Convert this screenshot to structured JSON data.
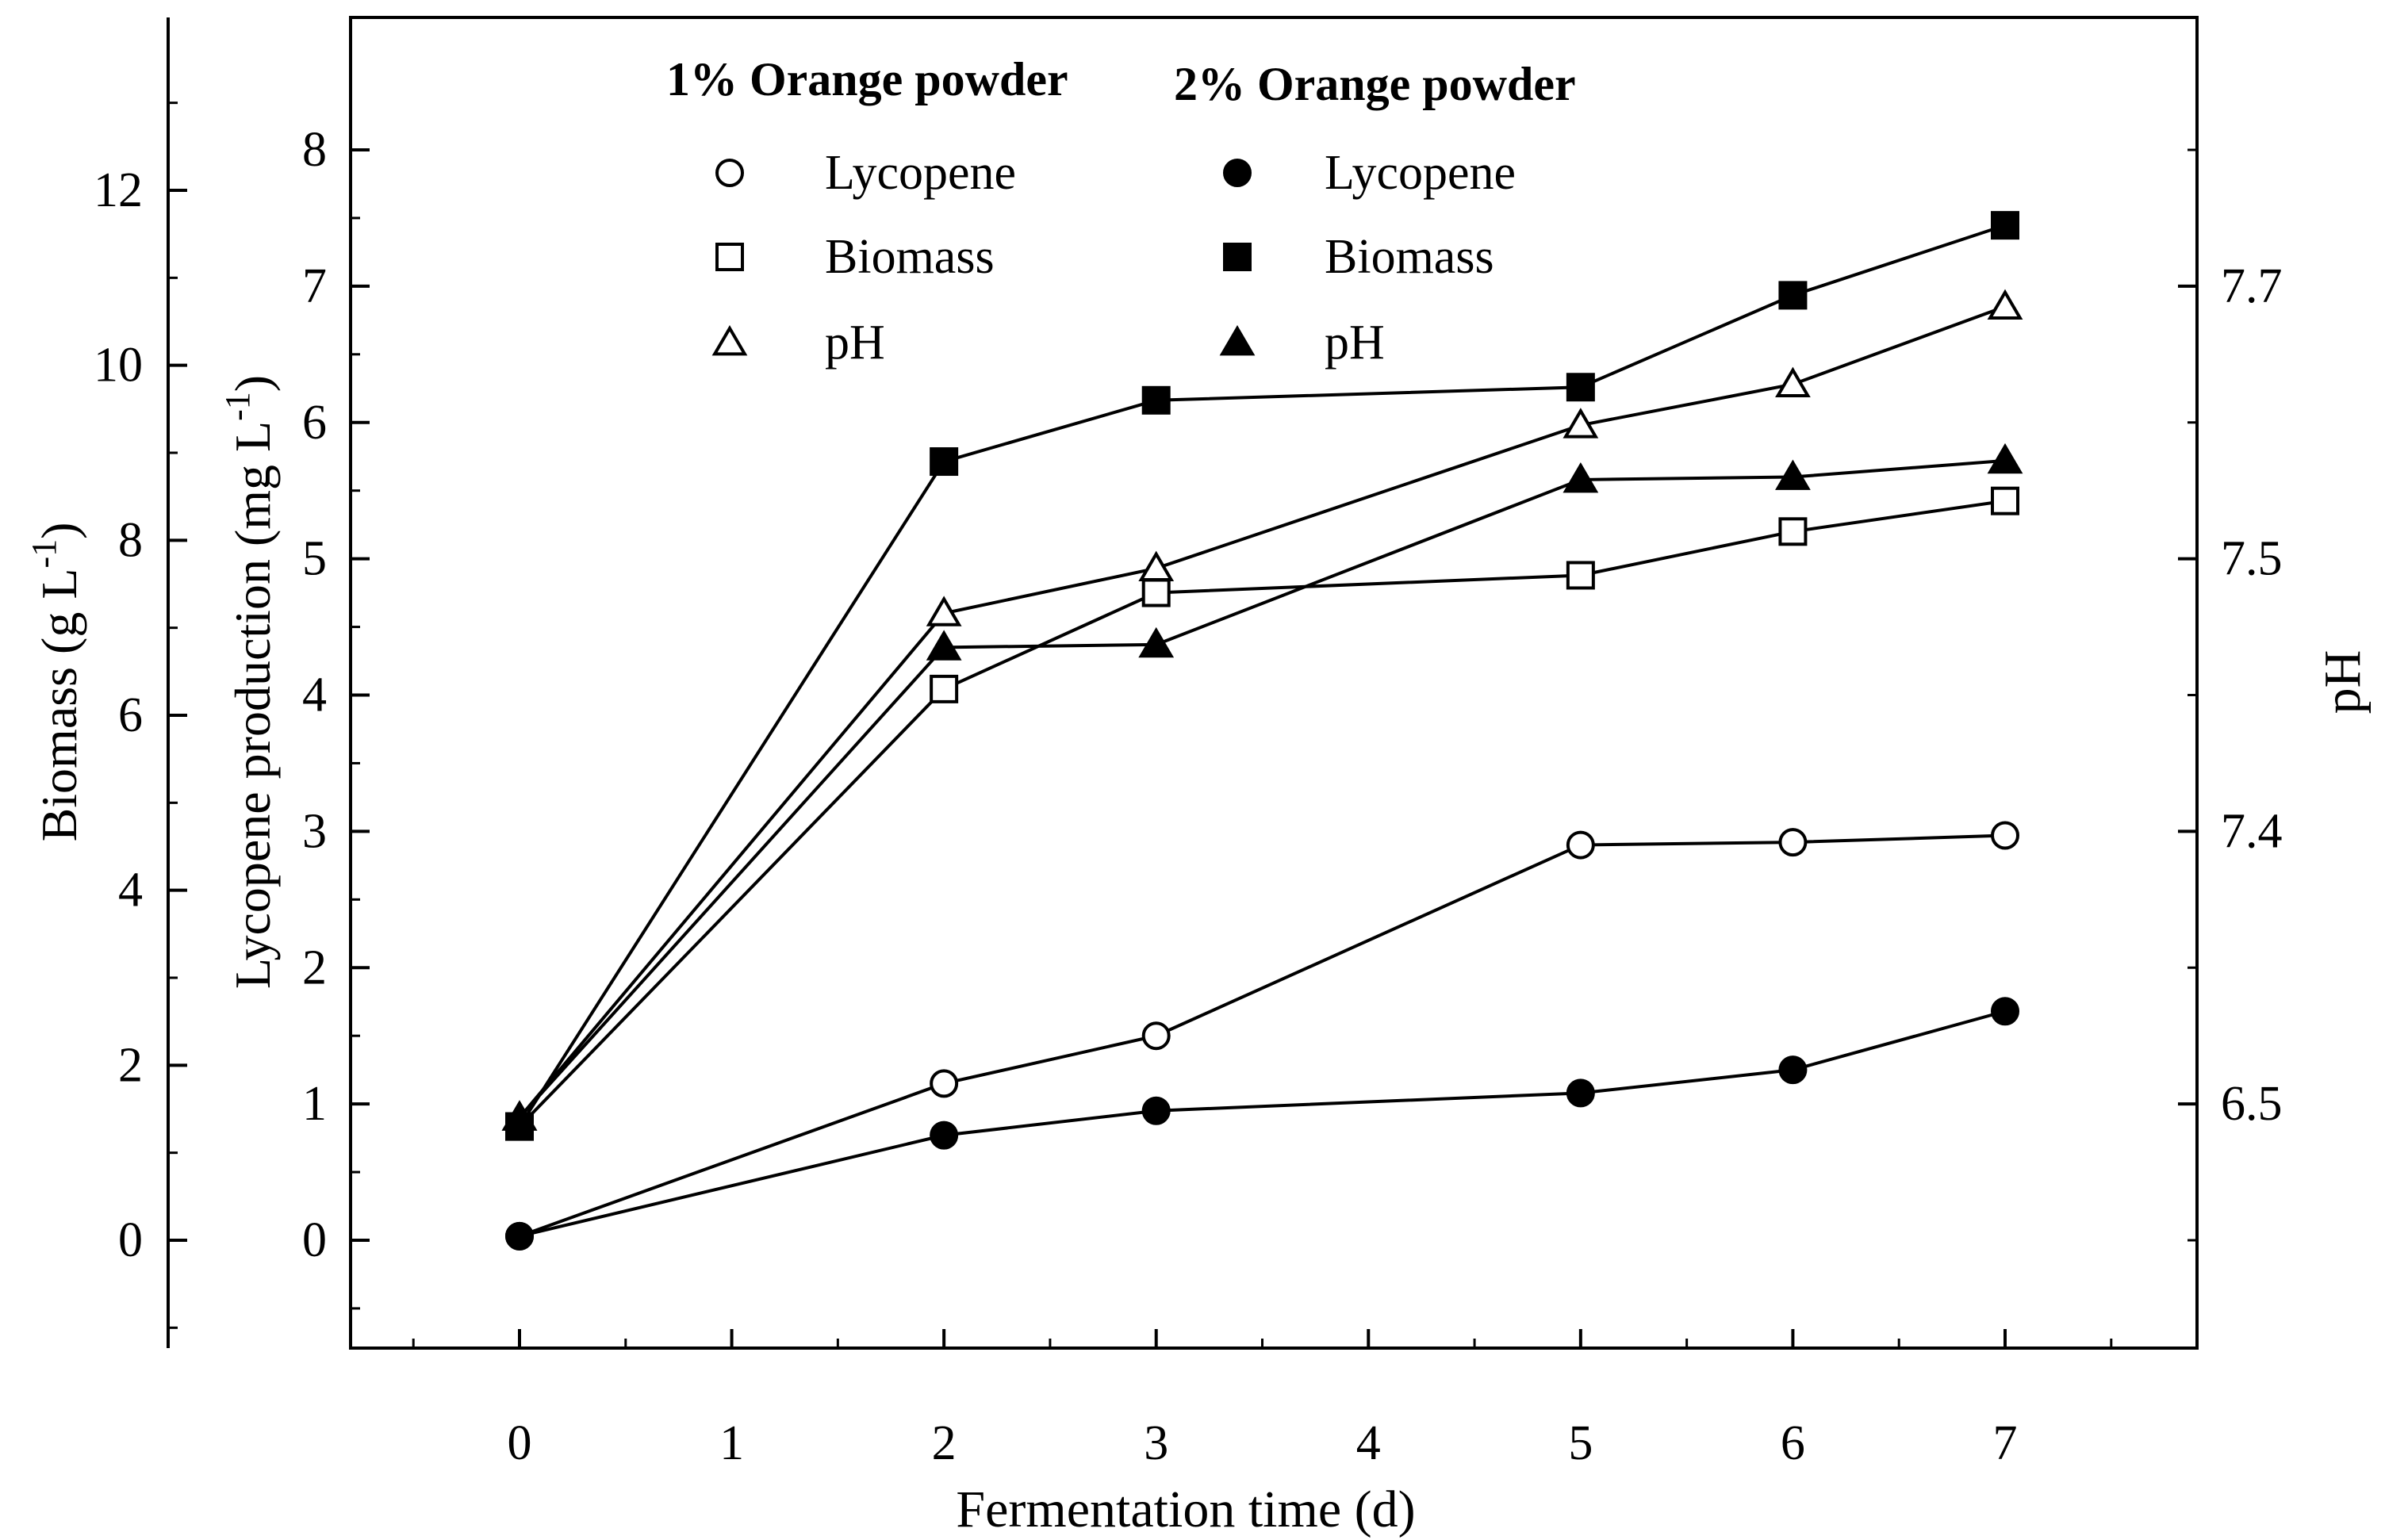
{
  "chart_data": {
    "type": "line",
    "xlabel": "Fermentation time (d)",
    "x_ticks": [
      0,
      1,
      2,
      3,
      4,
      5,
      6,
      7
    ],
    "xlim": [
      -0.8,
      7.9
    ],
    "y_axes": {
      "lycopene": {
        "label_main": "Lycopene production (mg L",
        "label_sup": "-1",
        "label_close": ")",
        "ticks": [
          0,
          1,
          2,
          3,
          4,
          5,
          6,
          7,
          8
        ],
        "range": [
          -0.77,
          8.0
        ]
      },
      "biomass": {
        "label_main": "Biomass (g L",
        "label_sup": "-1",
        "label_close": ")",
        "ticks": [
          0,
          2,
          4,
          6,
          8,
          10,
          12
        ],
        "range": [
          -2.2,
          14.0
        ]
      },
      "ph": {
        "label": "pH",
        "tick_labels": [
          "6.5",
          "7.4",
          "7.5",
          "7.7"
        ],
        "tick_positions_lycopene_units": [
          1.0,
          3.0,
          5.0,
          7.0
        ],
        "minor_tick_positions_lycopene_units": [
          0.0,
          2.0,
          4.0,
          6.0,
          8.0
        ]
      }
    },
    "x": [
      0,
      2,
      3,
      5,
      6,
      7
    ],
    "series": [
      {
        "group": "1% Orange powder",
        "name": "Lycopene",
        "axis": "lycopene",
        "marker": "circle",
        "filled": false,
        "values": [
          0.03,
          1.15,
          1.5,
          2.9,
          2.92,
          2.97
        ]
      },
      {
        "group": "1% Orange powder",
        "name": "Biomass",
        "axis": "biomass",
        "marker": "square",
        "filled": false,
        "values": [
          1.3,
          6.3,
          7.4,
          7.6,
          8.1,
          8.45
        ]
      },
      {
        "group": "1% Orange powder",
        "name": "pH",
        "axis": "lycopene",
        "marker": "triangle",
        "filled": false,
        "values": [
          0.9,
          4.6,
          4.93,
          5.98,
          6.28,
          6.85
        ]
      },
      {
        "group": "2% Orange powder",
        "name": "Lycopene",
        "axis": "lycopene",
        "marker": "circle",
        "filled": true,
        "values": [
          0.03,
          0.77,
          0.95,
          1.08,
          1.25,
          1.68
        ]
      },
      {
        "group": "2% Orange powder",
        "name": "Biomass",
        "axis": "biomass",
        "marker": "square",
        "filled": true,
        "values": [
          1.3,
          8.9,
          9.6,
          9.75,
          10.8,
          11.6
        ]
      },
      {
        "group": "2% Orange powder",
        "name": "pH",
        "axis": "lycopene",
        "marker": "triangle",
        "filled": true,
        "values": [
          0.9,
          4.35,
          4.37,
          5.58,
          5.6,
          5.72
        ]
      }
    ],
    "legend": {
      "placement": "top",
      "groups": [
        {
          "title": "1% Orange powder",
          "filled": false,
          "entries": [
            {
              "label": "Lycopene",
              "marker": "circle"
            },
            {
              "label": "Biomass",
              "marker": "square"
            },
            {
              "label": "pH",
              "marker": "triangle"
            }
          ]
        },
        {
          "title": "2% Orange powder",
          "filled": true,
          "entries": [
            {
              "label": "Lycopene",
              "marker": "circle"
            },
            {
              "label": "Biomass",
              "marker": "square"
            },
            {
              "label": "pH",
              "marker": "triangle"
            }
          ]
        }
      ]
    },
    "grid": false,
    "colors": {
      "line": "#000000",
      "filled_marker": "#000000",
      "open_marker": "#ffffff"
    }
  }
}
